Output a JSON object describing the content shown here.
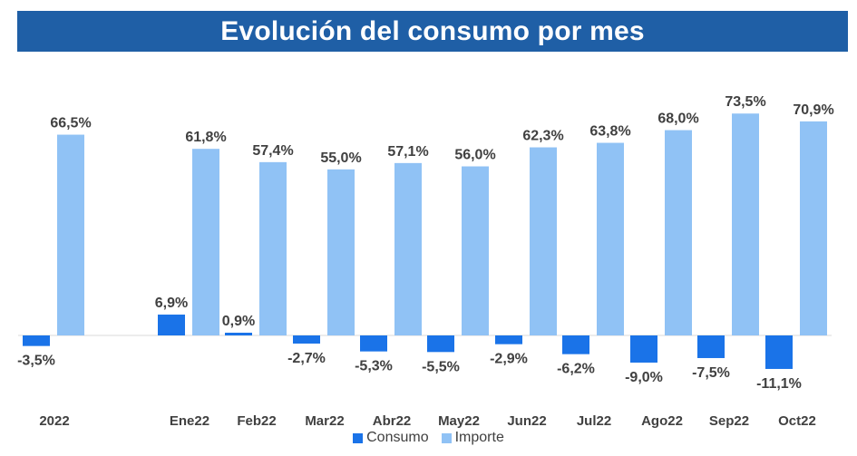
{
  "title": "Evolución del consumo por mes",
  "colors": {
    "title_bg": "#1f5fa6",
    "consumo": "#1a73e8",
    "importe": "#90c2f5",
    "label_text": "#404040"
  },
  "chart_data": {
    "type": "bar",
    "title": "Evolución del consumo por mes",
    "categories": [
      "2022",
      "Ene22",
      "Feb22",
      "Mar22",
      "Abr22",
      "May22",
      "Jun22",
      "Jul22",
      "Ago22",
      "Sep22",
      "Oct22"
    ],
    "series": [
      {
        "name": "Consumo",
        "values": [
          -3.5,
          6.9,
          0.9,
          -2.7,
          -5.3,
          -5.5,
          -2.9,
          -6.2,
          -9.0,
          -7.5,
          -11.1
        ],
        "labels": [
          "-3,5%",
          "6,9%",
          "0,9%",
          "-2,7%",
          "-5,3%",
          "-5,5%",
          "-2,9%",
          "-6,2%",
          "-9,0%",
          "-7,5%",
          "-11,1%"
        ]
      },
      {
        "name": "Importe",
        "values": [
          66.5,
          61.8,
          57.4,
          55.0,
          57.1,
          56.0,
          62.3,
          63.8,
          68.0,
          73.5,
          70.9
        ],
        "labels": [
          "66,5%",
          "61,8%",
          "57,4%",
          "55,0%",
          "57,1%",
          "56,0%",
          "62,3%",
          "63,8%",
          "68,0%",
          "73,5%",
          "70,9%"
        ]
      }
    ],
    "grid": false,
    "legend_position": "bottom"
  }
}
